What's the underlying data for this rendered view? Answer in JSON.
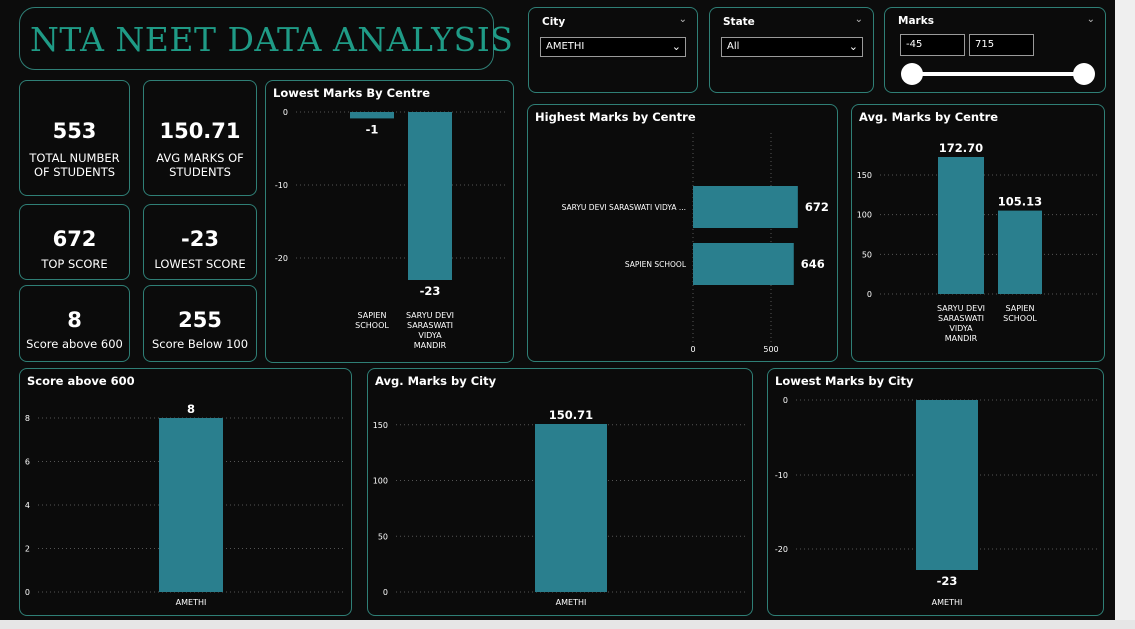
{
  "header": {
    "title": "NTA NEET DATA ANALYSIS"
  },
  "kpis": {
    "total_students": {
      "value": "553",
      "label": "TOTAL NUMBER\nOF STUDENTS"
    },
    "avg_marks": {
      "value": "150.71",
      "label": "AVG MARKS OF\nSTUDENTS"
    },
    "top_score": {
      "value": "672",
      "label": "TOP SCORE"
    },
    "lowest_score": {
      "value": "-23",
      "label": "LOWEST SCORE"
    },
    "above_600": {
      "value": "8",
      "label": "Score above 600"
    },
    "below_100": {
      "value": "255",
      "label": "Score Below 100"
    }
  },
  "slicers": {
    "city": {
      "title": "City",
      "selected": "AMETHI"
    },
    "state": {
      "title": "State",
      "selected": "All"
    },
    "marks": {
      "title": "Marks",
      "min": "-45",
      "max": "715"
    }
  },
  "colors": {
    "bar": "#2a7f8e",
    "accent": "#1f9b86",
    "border": "#2f7f76"
  },
  "icons": {
    "chevron": "chevron-down-icon"
  },
  "charts": {
    "lowest_by_centre": {
      "title": "Lowest Marks By Centre"
    },
    "highest_by_centre": {
      "title": "Highest Marks by Centre"
    },
    "avg_by_centre": {
      "title": "Avg. Marks by Centre"
    },
    "score_above_600": {
      "title": "Score above 600"
    },
    "avg_by_city": {
      "title": "Avg. Marks by City"
    },
    "lowest_by_city": {
      "title": "Lowest Marks by City"
    }
  },
  "chart_data": [
    {
      "id": "lowest_by_centre",
      "type": "bar",
      "title": "Lowest Marks By Centre",
      "categories": [
        "SAPIEN\nSCHOOL",
        "SARYU DEVI\nSARASWATI\nVIDYA\nMANDIR"
      ],
      "values": [
        -1,
        -23
      ],
      "data_labels": [
        "-1",
        "-23"
      ],
      "yticks": [
        0,
        -10,
        -20
      ],
      "ylim": [
        -25,
        0
      ]
    },
    {
      "id": "highest_by_centre",
      "type": "bar",
      "orientation": "horizontal",
      "title": "Highest Marks by Centre",
      "categories": [
        "SARYU DEVI SARASWATI VIDYA ...",
        "SAPIEN SCHOOL"
      ],
      "values": [
        672,
        646
      ],
      "data_labels": [
        "672",
        "646"
      ],
      "xticks": [
        0,
        500
      ],
      "xlim": [
        0,
        700
      ]
    },
    {
      "id": "avg_by_centre",
      "type": "bar",
      "title": "Avg. Marks by Centre",
      "categories": [
        "SARYU DEVI\nSARASWATI\nVIDYA\nMANDIR",
        "SAPIEN\nSCHOOL"
      ],
      "values": [
        172.7,
        105.13
      ],
      "data_labels": [
        "172.70",
        "105.13"
      ],
      "yticks": [
        0,
        50,
        100,
        150
      ],
      "ylim": [
        0,
        172.7
      ]
    },
    {
      "id": "score_above_600",
      "type": "bar",
      "title": "Score above 600",
      "categories": [
        "AMETHI"
      ],
      "values": [
        8
      ],
      "data_labels": [
        "8"
      ],
      "yticks": [
        0,
        2,
        4,
        6,
        8
      ],
      "ylim": [
        0,
        8
      ]
    },
    {
      "id": "avg_by_city",
      "type": "bar",
      "title": "Avg. Marks by City",
      "categories": [
        "AMETHI"
      ],
      "values": [
        150.71
      ],
      "data_labels": [
        "150.71"
      ],
      "yticks": [
        0,
        50,
        100,
        150
      ],
      "ylim": [
        0,
        150.71
      ]
    },
    {
      "id": "lowest_by_city",
      "type": "bar",
      "title": "Lowest Marks by City",
      "categories": [
        "AMETHI"
      ],
      "values": [
        -23
      ],
      "data_labels": [
        "-23"
      ],
      "yticks": [
        0,
        -10,
        -20
      ],
      "ylim": [
        -23,
        0
      ]
    }
  ]
}
